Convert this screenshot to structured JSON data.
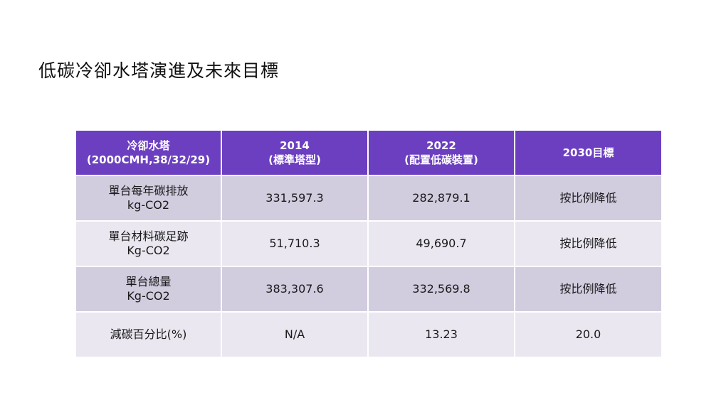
{
  "title": "低碳冷卻水塔演進及未來目標",
  "table": {
    "headers": [
      {
        "line1": "冷卻水塔",
        "line2": "(2000CMH,38/32/29)"
      },
      {
        "line1": "2014",
        "line2": "(標準塔型)"
      },
      {
        "line1": "2022",
        "line2": "(配置低碳裝置)"
      },
      {
        "line1": "2030目標",
        "line2": ""
      }
    ],
    "rows": [
      {
        "label1": "單台每年碳排放",
        "label2": "kg-CO2",
        "v2014": "331,597.3",
        "v2022": "282,879.1",
        "v2030": "按比例降低"
      },
      {
        "label1": "單台材料碳足跡",
        "label2": "Kg-CO2",
        "v2014": "51,710.3",
        "v2022": "49,690.7",
        "v2030": "按比例降低"
      },
      {
        "label1": "單台總量",
        "label2": "Kg-CO2",
        "v2014": "383,307.6",
        "v2022": "332,569.8",
        "v2030": "按比例降低"
      },
      {
        "label1": "減碳百分比(%)",
        "label2": "",
        "v2014": "N/A",
        "v2022": "13.23",
        "v2030": "20.0"
      }
    ]
  },
  "colors": {
    "header_bg": "#6c3fc1",
    "row_odd_bg": "#d2ccdf",
    "row_even_bg": "#eae7f0"
  }
}
